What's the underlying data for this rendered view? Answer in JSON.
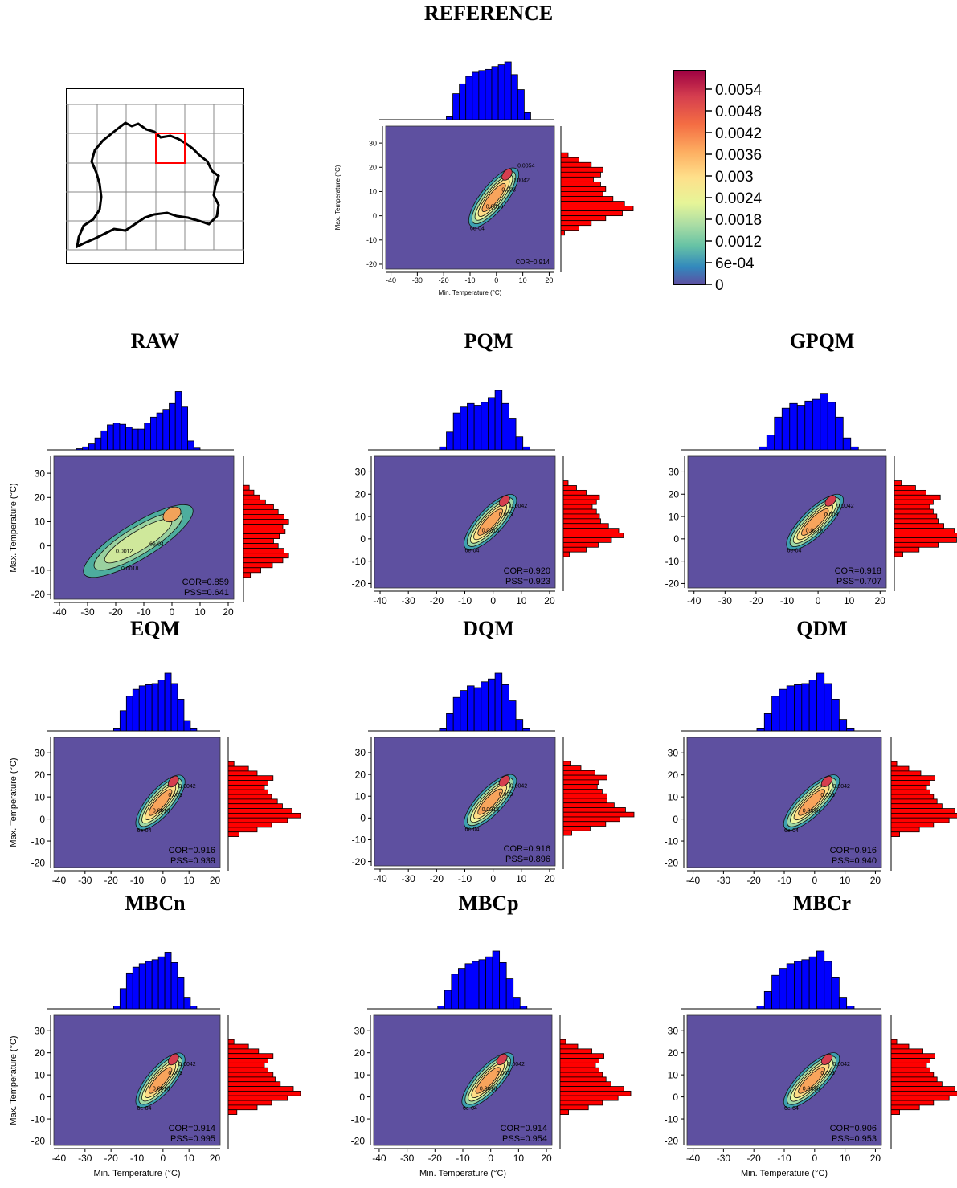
{
  "colors": {
    "hist_top": "#0000ff",
    "hist_right": "#ff0000",
    "background": "#5e50a0",
    "outline": "#000000",
    "map_box": "#ff0000"
  },
  "main_title": "REFERENCE",
  "colorbar": {
    "ticks": [
      "0.0054",
      "0.0048",
      "0.0042",
      "0.0036",
      "0.003",
      "0.0024",
      "0.0018",
      "0.0012",
      "6e-04",
      "0"
    ],
    "stops": [
      "#9e0142",
      "#d53e4f",
      "#f46d43",
      "#fdae61",
      "#fee08b",
      "#e6f598",
      "#abdda4",
      "#66c2a5",
      "#3288bd",
      "#5e4fa2"
    ]
  },
  "map": {
    "label": ""
  },
  "chart_data": [
    {
      "type": "heatmap",
      "title": "REFERENCE",
      "xlabel": "Min. Temperature (°C)",
      "ylabel": "Max. Temperature (°C)",
      "xticks": [
        "-40",
        "-30",
        "-20",
        "-10",
        "0",
        "10",
        "20"
      ],
      "yticks": [
        "30",
        "20",
        "10",
        "0",
        "-10",
        "-20"
      ],
      "xlim": [
        -42,
        22
      ],
      "ylim": [
        -22,
        37
      ],
      "cor": "COR=0.914",
      "pss": "",
      "contour_labels": [
        "6e-04",
        "0.0018",
        "0.003",
        "0.0042",
        "0.0054"
      ],
      "hist_x": [
        0.05,
        0.45,
        0.62,
        0.75,
        0.82,
        0.85,
        0.87,
        0.92,
        0.95,
        1.0,
        0.78,
        0.52,
        0.12
      ],
      "hist_y": [
        0.1,
        0.25,
        0.42,
        0.58,
        0.55,
        0.45,
        0.55,
        0.62,
        0.58,
        0.72,
        0.88,
        1.0,
        0.85,
        0.62,
        0.42,
        0.25,
        0.05
      ]
    },
    {
      "type": "heatmap",
      "title": "RAW",
      "xlabel": "",
      "ylabel": "Max. Temperature (°C)",
      "xticks": [
        "-40",
        "-30",
        "-20",
        "-10",
        "0",
        "10",
        "20"
      ],
      "yticks": [
        "30",
        "20",
        "10",
        "0",
        "-10",
        "-20"
      ],
      "xlim": [
        -42,
        22
      ],
      "ylim": [
        -22,
        37
      ],
      "cor": "COR=0.859",
      "pss": "PSS=0.641",
      "contour_labels": [
        "0.0012",
        "6e-04",
        "0.0018"
      ],
      "hist_x": [
        0.02,
        0.05,
        0.1,
        0.2,
        0.32,
        0.42,
        0.45,
        0.43,
        0.38,
        0.35,
        0.35,
        0.45,
        0.55,
        0.62,
        0.68,
        0.78,
        0.98,
        0.72,
        0.15,
        0.03
      ],
      "hist_y": [
        0.1,
        0.18,
        0.28,
        0.38,
        0.52,
        0.6,
        0.7,
        0.78,
        0.68,
        0.72,
        0.62,
        0.52,
        0.6,
        0.7,
        0.78,
        0.68,
        0.5,
        0.3,
        0.12
      ]
    },
    {
      "type": "heatmap",
      "title": "PQM",
      "xlabel": "",
      "ylabel": "",
      "xticks": [
        "-40",
        "-30",
        "-20",
        "-10",
        "0",
        "10",
        "20"
      ],
      "yticks": [
        "30",
        "20",
        "10",
        "0",
        "-10",
        "-20"
      ],
      "xlim": [
        -42,
        22
      ],
      "ylim": [
        -22,
        37
      ],
      "cor": "COR=0.920",
      "pss": "PSS=0.923",
      "contour_labels": [
        "6e-04",
        "0.0018",
        "0.003",
        "0.0042"
      ],
      "hist_x": [
        0.05,
        0.3,
        0.62,
        0.72,
        0.78,
        0.75,
        0.8,
        0.88,
        1.0,
        0.78,
        0.52,
        0.22,
        0.05
      ],
      "hist_y": [
        0.08,
        0.22,
        0.38,
        0.6,
        0.55,
        0.48,
        0.55,
        0.6,
        0.62,
        0.75,
        0.92,
        1.0,
        0.8,
        0.58,
        0.38,
        0.1
      ]
    },
    {
      "type": "heatmap",
      "title": "GPQM",
      "xlabel": "",
      "ylabel": "",
      "xticks": [
        "-40",
        "-30",
        "-20",
        "-10",
        "0",
        "10",
        "20"
      ],
      "yticks": [
        "30",
        "20",
        "10",
        "0",
        "-10",
        "-20"
      ],
      "xlim": [
        -42,
        22
      ],
      "ylim": [
        -22,
        37
      ],
      "cor": "COR=0.918",
      "pss": "PSS=0.707",
      "contour_labels": [
        "6e-04",
        "0.0018",
        "0.003",
        "0.0042"
      ],
      "hist_x": [
        0.05,
        0.25,
        0.55,
        0.7,
        0.78,
        0.75,
        0.82,
        0.85,
        0.95,
        0.8,
        0.55,
        0.2,
        0.05
      ],
      "hist_y": [
        0.1,
        0.3,
        0.45,
        0.65,
        0.55,
        0.5,
        0.55,
        0.6,
        0.62,
        0.7,
        0.85,
        1.0,
        0.88,
        0.62,
        0.35,
        0.12
      ]
    },
    {
      "type": "heatmap",
      "title": "EQM",
      "xlabel": "",
      "ylabel": "Max. Temperature (°C)",
      "xticks": [
        "-40",
        "-30",
        "-20",
        "-10",
        "0",
        "10",
        "20"
      ],
      "yticks": [
        "30",
        "20",
        "10",
        "0",
        "-10",
        "-20"
      ],
      "xlim": [
        -42,
        22
      ],
      "ylim": [
        -22,
        37
      ],
      "cor": "COR=0.916",
      "pss": "PSS=0.939",
      "contour_labels": [
        "6e-04",
        "0.0018",
        "0.003",
        "0.0042"
      ],
      "hist_x": [
        0.05,
        0.35,
        0.6,
        0.72,
        0.78,
        0.8,
        0.82,
        0.88,
        1.0,
        0.82,
        0.55,
        0.18,
        0.05
      ],
      "hist_y": [
        0.08,
        0.28,
        0.4,
        0.62,
        0.55,
        0.5,
        0.55,
        0.6,
        0.68,
        0.75,
        0.88,
        1.0,
        0.82,
        0.6,
        0.4,
        0.15
      ]
    },
    {
      "type": "heatmap",
      "title": "DQM",
      "xlabel": "",
      "ylabel": "",
      "xticks": [
        "-40",
        "-30",
        "-20",
        "-10",
        "0",
        "10",
        "20"
      ],
      "yticks": [
        "30",
        "20",
        "10",
        "0",
        "-10",
        "-20"
      ],
      "xlim": [
        -42,
        22
      ],
      "ylim": [
        -22,
        37
      ],
      "cor": "COR=0.916",
      "pss": "PSS=0.896",
      "contour_labels": [
        "6e-04",
        "0.0018",
        "0.003",
        "0.0042"
      ],
      "hist_x": [
        0.05,
        0.3,
        0.58,
        0.7,
        0.78,
        0.75,
        0.85,
        0.9,
        1.0,
        0.8,
        0.52,
        0.2,
        0.05
      ],
      "hist_y": [
        0.1,
        0.25,
        0.45,
        0.62,
        0.5,
        0.48,
        0.55,
        0.62,
        0.62,
        0.72,
        0.88,
        1.0,
        0.8,
        0.6,
        0.38,
        0.12
      ]
    },
    {
      "type": "heatmap",
      "title": "QDM",
      "xlabel": "",
      "ylabel": "",
      "xticks": [
        "-40",
        "-30",
        "-20",
        "-10",
        "0",
        "10",
        "20"
      ],
      "yticks": [
        "30",
        "20",
        "10",
        "0",
        "-10",
        "-20"
      ],
      "xlim": [
        -42,
        22
      ],
      "ylim": [
        -22,
        37
      ],
      "cor": "COR=0.916",
      "pss": "PSS=0.940",
      "contour_labels": [
        "6e-04",
        "0.0018",
        "0.003",
        "0.0042"
      ],
      "hist_x": [
        0.05,
        0.3,
        0.6,
        0.72,
        0.78,
        0.8,
        0.82,
        0.88,
        1.0,
        0.82,
        0.55,
        0.2,
        0.05
      ],
      "hist_y": [
        0.08,
        0.25,
        0.42,
        0.62,
        0.55,
        0.5,
        0.55,
        0.6,
        0.65,
        0.72,
        0.9,
        1.0,
        0.82,
        0.6,
        0.4,
        0.12
      ]
    },
    {
      "type": "heatmap",
      "title": "MBCn",
      "xlabel": "Min. Temperature (°C)",
      "ylabel": "Max. Temperature (°C)",
      "xticks": [
        "-40",
        "-30",
        "-20",
        "-10",
        "0",
        "10",
        "20"
      ],
      "yticks": [
        "30",
        "20",
        "10",
        "0",
        "-10",
        "-20"
      ],
      "xlim": [
        -42,
        22
      ],
      "ylim": [
        -22,
        37
      ],
      "cor": "COR=0.914",
      "pss": "PSS=0.995",
      "contour_labels": [
        "6e-04",
        "0.0018",
        "0.003",
        "0.0042"
      ],
      "hist_x": [
        0.05,
        0.35,
        0.62,
        0.72,
        0.78,
        0.82,
        0.85,
        0.9,
        0.98,
        0.8,
        0.55,
        0.2,
        0.05
      ],
      "hist_y": [
        0.08,
        0.28,
        0.42,
        0.62,
        0.55,
        0.5,
        0.55,
        0.62,
        0.65,
        0.72,
        0.9,
        1.0,
        0.82,
        0.6,
        0.4,
        0.12
      ]
    },
    {
      "type": "heatmap",
      "title": "MBCp",
      "xlabel": "Min. Temperature (°C)",
      "ylabel": "",
      "xticks": [
        "-40",
        "-30",
        "-20",
        "-10",
        "0",
        "10",
        "20"
      ],
      "yticks": [
        "30",
        "20",
        "10",
        "0",
        "-10",
        "-20"
      ],
      "xlim": [
        -42,
        22
      ],
      "ylim": [
        -22,
        37
      ],
      "cor": "COR=0.914",
      "pss": "PSS=0.954",
      "contour_labels": [
        "6e-04",
        "0.0018",
        "0.003",
        "0.0042"
      ],
      "hist_x": [
        0.05,
        0.32,
        0.6,
        0.7,
        0.78,
        0.82,
        0.85,
        0.9,
        1.0,
        0.8,
        0.52,
        0.2,
        0.05
      ],
      "hist_y": [
        0.08,
        0.25,
        0.45,
        0.62,
        0.55,
        0.5,
        0.55,
        0.6,
        0.65,
        0.72,
        0.9,
        1.0,
        0.82,
        0.6,
        0.4,
        0.12
      ]
    },
    {
      "type": "heatmap",
      "title": "MBCr",
      "xlabel": "Min. Temperature (°C)",
      "ylabel": "",
      "xticks": [
        "-40",
        "-30",
        "-20",
        "-10",
        "0",
        "10",
        "20"
      ],
      "yticks": [
        "30",
        "20",
        "10",
        "0",
        "-10",
        "-20"
      ],
      "xlim": [
        -42,
        22
      ],
      "ylim": [
        -22,
        37
      ],
      "cor": "COR=0.906",
      "pss": "PSS=0.953",
      "contour_labels": [
        "6e-04",
        "0.0018",
        "0.003",
        "0.0042"
      ],
      "hist_x": [
        0.05,
        0.3,
        0.58,
        0.7,
        0.78,
        0.82,
        0.85,
        0.9,
        1.0,
        0.82,
        0.55,
        0.2,
        0.05
      ],
      "hist_y": [
        0.08,
        0.25,
        0.45,
        0.62,
        0.55,
        0.5,
        0.55,
        0.6,
        0.65,
        0.72,
        0.9,
        1.0,
        0.82,
        0.6,
        0.4,
        0.12
      ]
    }
  ]
}
